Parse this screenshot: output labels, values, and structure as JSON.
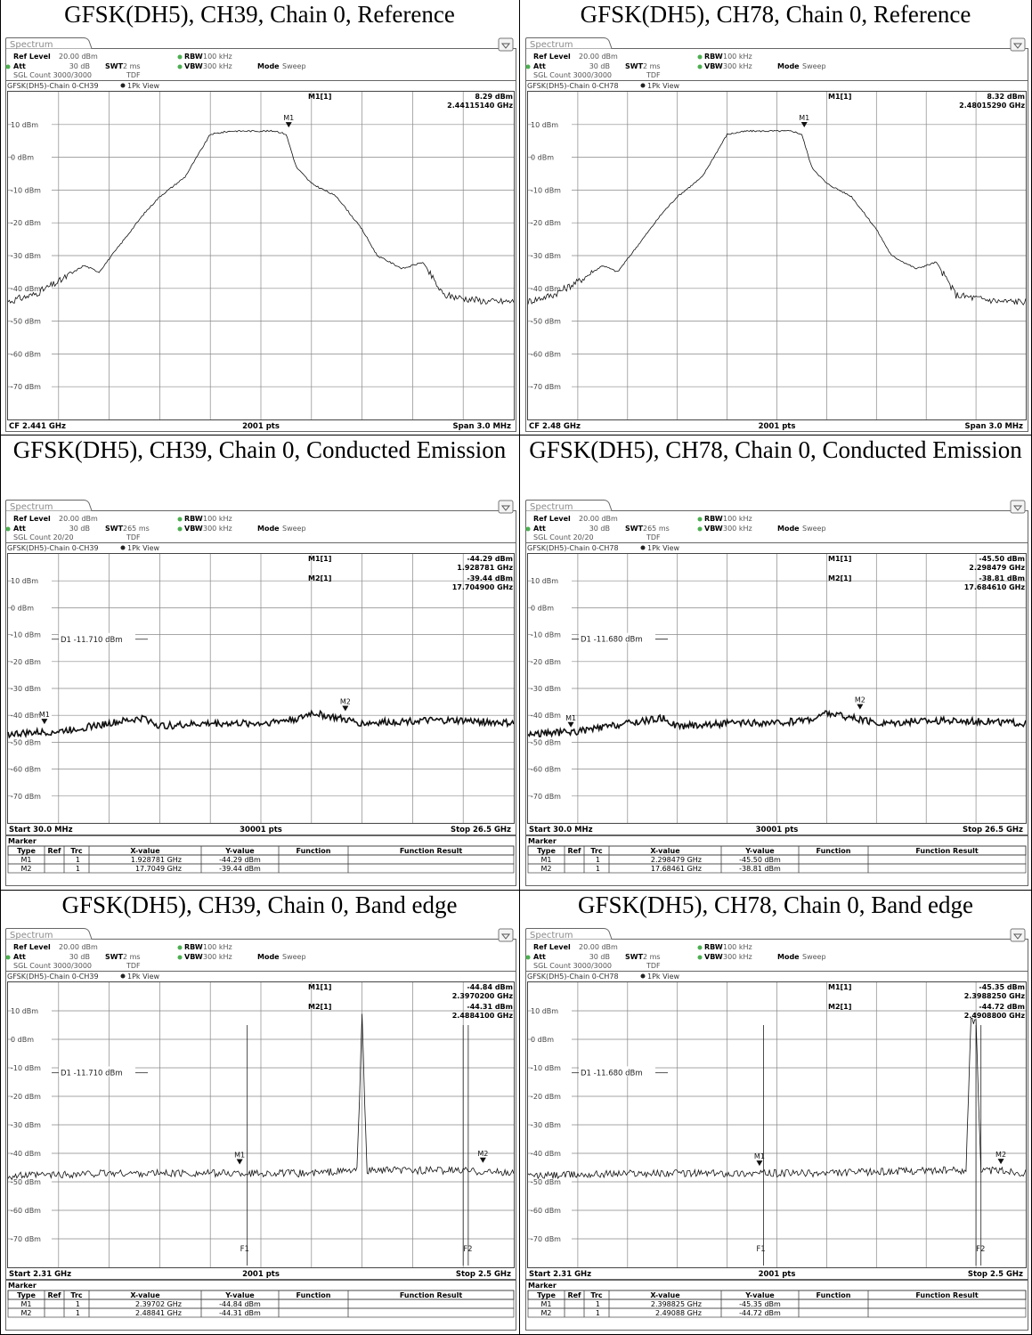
{
  "cells": [
    {
      "caption": "GFSK(DH5), CH39, Chain 0, Reference",
      "kind": "reference",
      "header": {
        "tab": "Spectrum",
        "ref_level_label": "Ref Level",
        "ref_level": "20.00 dBm",
        "att_label": "Att",
        "att": "30 dB",
        "swt_label": "SWT",
        "swt": "2 ms",
        "rbw_label": "RBW",
        "rbw": "100 kHz",
        "vbw_label": "VBW",
        "vbw": "300 kHz",
        "mode_label": "Mode",
        "mode": "Sweep",
        "count": "SGL Count 3000/3000",
        "tdf": "TDF",
        "trace_label": "GFSK(DH5)-Chain 0-CH39",
        "view": "1Pk View"
      },
      "marker_info": [
        {
          "name": "M1[1]",
          "level": "8.29 dBm",
          "freq": "2.44115140 GHz"
        }
      ],
      "footer": {
        "left": "CF 2.441 GHz",
        "center": "2001 pts",
        "right": "Span 3.0 MHz"
      },
      "chart_data": {
        "type": "line",
        "xlabel": "",
        "ylabel": "",
        "ylim": [
          -80,
          20
        ],
        "yticks": [
          "10 dBm",
          "0 dBm",
          "-10 dBm",
          "-20 dBm",
          "-30 dBm",
          "-40 dBm",
          "-50 dBm",
          "-60 dBm",
          "-70 dBm"
        ],
        "grid": true,
        "series": [
          {
            "x": [
              0,
              0.05,
              0.1,
              0.15,
              0.18,
              0.22,
              0.27,
              0.3,
              0.35,
              0.4,
              0.44,
              0.48,
              0.53,
              0.55,
              0.57,
              0.6,
              0.65,
              0.7,
              0.73,
              0.78,
              0.82,
              0.86,
              0.9,
              0.95,
              1.0
            ],
            "y": [
              -44,
              -42,
              -38,
              -33,
              -35,
              -27,
              -17,
              -12,
              -6,
              7,
              8,
              8,
              8,
              7,
              -3,
              -8,
              -12,
              -22,
              -30,
              -34,
              -32,
              -42,
              -43,
              -44,
              -44
            ]
          }
        ],
        "markers": [
          {
            "name": "M1",
            "x": 0.555,
            "y": 8.29
          }
        ],
        "x_axis": {
          "start": "CF 2.441 GHz",
          "points": "2001 pts",
          "end": "Span 3.0 MHz"
        }
      }
    },
    {
      "caption": "GFSK(DH5), CH78, Chain 0, Reference",
      "kind": "reference",
      "header": {
        "tab": "Spectrum",
        "ref_level_label": "Ref Level",
        "ref_level": "20.00 dBm",
        "att_label": "Att",
        "att": "30 dB",
        "swt_label": "SWT",
        "swt": "2 ms",
        "rbw_label": "RBW",
        "rbw": "100 kHz",
        "vbw_label": "VBW",
        "vbw": "300 kHz",
        "mode_label": "Mode",
        "mode": "Sweep",
        "count": "SGL Count 3000/3000",
        "tdf": "TDF",
        "trace_label": "GFSK(DH5)-Chain 0-CH78",
        "view": "1Pk View"
      },
      "marker_info": [
        {
          "name": "M1[1]",
          "level": "8.32 dBm",
          "freq": "2.48015290 GHz"
        }
      ],
      "footer": {
        "left": "CF 2.48 GHz",
        "center": "2001 pts",
        "right": "Span 3.0 MHz"
      },
      "chart_data": {
        "type": "line",
        "xlabel": "",
        "ylabel": "",
        "ylim": [
          -80,
          20
        ],
        "yticks": [
          "10 dBm",
          "0 dBm",
          "-10 dBm",
          "-20 dBm",
          "-30 dBm",
          "-40 dBm",
          "-50 dBm",
          "-60 dBm",
          "-70 dBm"
        ],
        "grid": true,
        "series": [
          {
            "x": [
              0,
              0.05,
              0.1,
              0.15,
              0.18,
              0.22,
              0.27,
              0.3,
              0.35,
              0.4,
              0.44,
              0.48,
              0.53,
              0.55,
              0.57,
              0.6,
              0.65,
              0.7,
              0.73,
              0.78,
              0.82,
              0.86,
              0.9,
              0.95,
              1.0
            ],
            "y": [
              -44,
              -42,
              -38,
              -33,
              -35,
              -27,
              -17,
              -12,
              -6,
              7,
              8,
              8,
              8,
              7,
              -3,
              -8,
              -12,
              -22,
              -30,
              -34,
              -32,
              -42,
              -43,
              -44,
              -44
            ]
          }
        ],
        "markers": [
          {
            "name": "M1",
            "x": 0.555,
            "y": 8.32
          }
        ],
        "x_axis": {
          "start": "CF 2.48 GHz",
          "points": "2001 pts",
          "end": "Span 3.0 MHz"
        }
      }
    },
    {
      "caption": "GFSK(DH5), CH39, Chain 0, Conducted Emission",
      "kind": "conducted",
      "header": {
        "tab": "Spectrum",
        "ref_level_label": "Ref Level",
        "ref_level": "20.00 dBm",
        "att_label": "Att",
        "att": "30 dB",
        "swt_label": "SWT",
        "swt": "265 ms",
        "rbw_label": "RBW",
        "rbw": "100 kHz",
        "vbw_label": "VBW",
        "vbw": "300 kHz",
        "mode_label": "Mode",
        "mode": "Sweep",
        "count": "SGL Count 20/20",
        "tdf": "TDF",
        "trace_label": "GFSK(DH5)-Chain 0-CH39",
        "view": "1Pk View"
      },
      "marker_info": [
        {
          "name": "M1[1]",
          "level": "-44.29 dBm",
          "freq": "1.928781 GHz"
        },
        {
          "name": "M2[1]",
          "level": "-39.44 dBm",
          "freq": "17.704900 GHz"
        }
      ],
      "d1_label": "D1 -11.710 dBm",
      "footer": {
        "left": "Start 30.0 MHz",
        "center": "30001 pts",
        "right": "Stop 26.5 GHz"
      },
      "table": {
        "title": "Marker",
        "columns": [
          "Type",
          "Ref",
          "Trc",
          "X-value",
          "Y-value",
          "Function",
          "Function Result"
        ],
        "rows": [
          [
            "M1",
            "",
            "1",
            "1.928781 GHz",
            "-44.29 dBm",
            "",
            ""
          ],
          [
            "M2",
            "",
            "1",
            "17.7049 GHz",
            "-39.44 dBm",
            "",
            ""
          ]
        ]
      },
      "chart_data": {
        "type": "line",
        "xlabel": "",
        "ylabel": "",
        "ylim": [
          -80,
          20
        ],
        "yticks": [
          "10 dBm",
          "0 dBm",
          "-10 dBm",
          "-20 dBm",
          "-30 dBm",
          "-40 dBm",
          "-50 dBm",
          "-60 dBm",
          "-70 dBm"
        ],
        "grid": true,
        "series": [
          {
            "x": [
              0,
              0.1,
              0.2,
              0.27,
              0.3,
              0.4,
              0.5,
              0.58,
              0.6,
              0.65,
              0.7,
              0.8,
              0.9,
              1.0
            ],
            "y": [
              -47,
              -46,
              -43,
              -41,
              -44,
              -43,
              -43,
              -41,
              -39,
              -41,
              -43,
              -42,
              -42,
              -43
            ]
          }
        ],
        "markers": [
          {
            "name": "M1",
            "x": 0.072,
            "y": -44.29
          },
          {
            "name": "M2",
            "x": 0.667,
            "y": -39.44
          }
        ],
        "lines": [
          {
            "name": "D1",
            "y": -11.71
          }
        ],
        "x_axis": {
          "start": "Start 30.0 MHz",
          "points": "30001 pts",
          "end": "Stop 26.5 GHz"
        }
      }
    },
    {
      "caption": "GFSK(DH5), CH78, Chain 0, Conducted Emission",
      "kind": "conducted",
      "header": {
        "tab": "Spectrum",
        "ref_level_label": "Ref Level",
        "ref_level": "20.00 dBm",
        "att_label": "Att",
        "att": "30 dB",
        "swt_label": "SWT",
        "swt": "265 ms",
        "rbw_label": "RBW",
        "rbw": "100 kHz",
        "vbw_label": "VBW",
        "vbw": "300 kHz",
        "mode_label": "Mode",
        "mode": "Sweep",
        "count": "SGL Count 20/20",
        "tdf": "TDF",
        "trace_label": "GFSK(DH5)-Chain 0-CH78",
        "view": "1Pk View"
      },
      "marker_info": [
        {
          "name": "M1[1]",
          "level": "-45.50 dBm",
          "freq": "2.298479 GHz"
        },
        {
          "name": "M2[1]",
          "level": "-38.81 dBm",
          "freq": "17.684610 GHz"
        }
      ],
      "d1_label": "D1 -11.680 dBm",
      "footer": {
        "left": "Start 30.0 MHz",
        "center": "30001 pts",
        "right": "Stop 26.5 GHz"
      },
      "table": {
        "title": "Marker",
        "columns": [
          "Type",
          "Ref",
          "Trc",
          "X-value",
          "Y-value",
          "Function",
          "Function Result"
        ],
        "rows": [
          [
            "M1",
            "",
            "1",
            "2.298479 GHz",
            "-45.50 dBm",
            "",
            ""
          ],
          [
            "M2",
            "",
            "1",
            "17.68461 GHz",
            "-38.81 dBm",
            "",
            ""
          ]
        ]
      },
      "chart_data": {
        "type": "line",
        "xlabel": "",
        "ylabel": "",
        "ylim": [
          -80,
          20
        ],
        "yticks": [
          "10 dBm",
          "0 dBm",
          "-10 dBm",
          "-20 dBm",
          "-30 dBm",
          "-40 dBm",
          "-50 dBm",
          "-60 dBm",
          "-70 dBm"
        ],
        "grid": true,
        "series": [
          {
            "x": [
              0,
              0.1,
              0.2,
              0.27,
              0.3,
              0.4,
              0.5,
              0.58,
              0.6,
              0.65,
              0.7,
              0.8,
              0.9,
              1.0
            ],
            "y": [
              -47,
              -46,
              -43,
              -41,
              -44,
              -43,
              -43,
              -41,
              -39,
              -41,
              -43,
              -42,
              -42,
              -43
            ]
          }
        ],
        "markers": [
          {
            "name": "M1",
            "x": 0.086,
            "y": -45.5
          },
          {
            "name": "M2",
            "x": 0.667,
            "y": -38.81
          }
        ],
        "lines": [
          {
            "name": "D1",
            "y": -11.68
          }
        ],
        "x_axis": {
          "start": "Start 30.0 MHz",
          "points": "30001 pts",
          "end": "Stop 26.5 GHz"
        }
      }
    },
    {
      "caption": "GFSK(DH5), CH39, Chain 0, Band edge",
      "kind": "bandedge",
      "header": {
        "tab": "Spectrum",
        "ref_level_label": "Ref Level",
        "ref_level": "20.00 dBm",
        "att_label": "Att",
        "att": "30 dB",
        "swt_label": "SWT",
        "swt": "2 ms",
        "rbw_label": "RBW",
        "rbw": "100 kHz",
        "vbw_label": "VBW",
        "vbw": "300 kHz",
        "mode_label": "Mode",
        "mode": "Sweep",
        "count": "SGL Count 3000/3000",
        "tdf": "TDF",
        "trace_label": "GFSK(DH5)-Chain 0-CH39",
        "view": "1Pk View"
      },
      "marker_info": [
        {
          "name": "M1[1]",
          "level": "-44.84 dBm",
          "freq": "2.3970200 GHz"
        },
        {
          "name": "M2[1]",
          "level": "-44.31 dBm",
          "freq": "2.4884100 GHz"
        }
      ],
      "d1_label": "D1 -11.710 dBm",
      "f_labels": [
        "F1",
        "F2"
      ],
      "footer": {
        "left": "Start 2.31 GHz",
        "center": "2001 pts",
        "right": "Stop 2.5 GHz"
      },
      "table": {
        "title": "Marker",
        "columns": [
          "Type",
          "Ref",
          "Trc",
          "X-value",
          "Y-value",
          "Function",
          "Function Result"
        ],
        "rows": [
          [
            "M1",
            "",
            "1",
            "2.39702 GHz",
            "-44.84 dBm",
            "",
            ""
          ],
          [
            "M2",
            "",
            "1",
            "2.48841 GHz",
            "-44.31 dBm",
            "",
            ""
          ]
        ]
      },
      "chart_data": {
        "type": "line",
        "xlabel": "",
        "ylabel": "",
        "ylim": [
          -80,
          20
        ],
        "yticks": [
          "10 dBm",
          "0 dBm",
          "-10 dBm",
          "-20 dBm",
          "-30 dBm",
          "-40 dBm",
          "-50 dBm",
          "-60 dBm",
          "-70 dBm"
        ],
        "grid": true,
        "series": [
          {
            "x": [
              0,
              0.2,
              0.4,
              0.6,
              0.69,
              0.695,
              0.7,
              0.705,
              0.71,
              0.8,
              0.9,
              1.0
            ],
            "y": [
              -48,
              -47,
              -47,
              -47,
              -46,
              -20,
              8,
              -20,
              -46,
              -46,
              -46,
              -47
            ]
          }
        ],
        "markers": [
          {
            "name": "M1",
            "x": 0.458,
            "y": -44.84
          },
          {
            "name": "M2",
            "x": 0.939,
            "y": -44.31
          }
        ],
        "lines": [
          {
            "name": "D1",
            "y": -11.71
          }
        ],
        "vlines": [
          {
            "name": "F1",
            "x": 0.473
          },
          {
            "name": "F2",
            "x": 0.9
          },
          {
            "name": "",
            "x": 0.91
          }
        ],
        "x_axis": {
          "start": "Start 2.31 GHz",
          "points": "2001 pts",
          "end": "Stop 2.5 GHz"
        }
      }
    },
    {
      "caption": "GFSK(DH5), CH78, Chain 0, Band edge",
      "kind": "bandedge",
      "header": {
        "tab": "Spectrum",
        "ref_level_label": "Ref Level",
        "ref_level": "20.00 dBm",
        "att_label": "Att",
        "att": "30 dB",
        "swt_label": "SWT",
        "swt": "2 ms",
        "rbw_label": "RBW",
        "rbw": "100 kHz",
        "vbw_label": "VBW",
        "vbw": "300 kHz",
        "mode_label": "Mode",
        "mode": "Sweep",
        "count": "SGL Count 3000/3000",
        "tdf": "TDF",
        "trace_label": "GFSK(DH5)-Chain 0-CH78",
        "view": "1Pk View"
      },
      "marker_info": [
        {
          "name": "M1[1]",
          "level": "-45.35 dBm",
          "freq": "2.3988250 GHz"
        },
        {
          "name": "M2[1]",
          "level": "-44.72 dBm",
          "freq": "2.4908800 GHz"
        }
      ],
      "d1_label": "D1 -11.680 dBm",
      "f_labels": [
        "F1",
        "F2"
      ],
      "footer": {
        "left": "Start 2.31 GHz",
        "center": "2001 pts",
        "right": "Stop 2.5 GHz"
      },
      "table": {
        "title": "Marker",
        "columns": [
          "Type",
          "Ref",
          "Trc",
          "X-value",
          "Y-value",
          "Function",
          "Function Result"
        ],
        "rows": [
          [
            "M1",
            "",
            "1",
            "2.398825 GHz",
            "-45.35 dBm",
            "",
            ""
          ],
          [
            "M2",
            "",
            "1",
            "2.49088 GHz",
            "-44.72 dBm",
            "",
            ""
          ]
        ]
      },
      "chart_data": {
        "type": "line",
        "xlabel": "",
        "ylabel": "",
        "ylim": [
          -80,
          20
        ],
        "yticks": [
          "10 dBm",
          "0 dBm",
          "-10 dBm",
          "-20 dBm",
          "-30 dBm",
          "-40 dBm",
          "-50 dBm",
          "-60 dBm",
          "-70 dBm"
        ],
        "grid": true,
        "series": [
          {
            "x": [
              0,
              0.2,
              0.4,
              0.6,
              0.8,
              0.88,
              0.885,
              0.89,
              0.895,
              0.9,
              0.905,
              0.91,
              0.95,
              1.0
            ],
            "y": [
              -48,
              -47,
              -47,
              -47,
              -46,
              -46,
              -20,
              8,
              6,
              8,
              -20,
              -46,
              -46,
              -47
            ]
          }
        ],
        "markers": [
          {
            "name": "M1",
            "x": 0.465,
            "y": -45.35
          },
          {
            "name": "M2",
            "x": 0.95,
            "y": -44.72
          }
        ],
        "lines": [
          {
            "name": "D1",
            "y": -11.68
          }
        ],
        "vlines": [
          {
            "name": "F1",
            "x": 0.473
          },
          {
            "name": "F2",
            "x": 0.9
          },
          {
            "name": "",
            "x": 0.91
          }
        ],
        "x_axis": {
          "start": "Start 2.31 GHz",
          "points": "2001 pts",
          "end": "Stop 2.5 GHz"
        }
      }
    }
  ]
}
